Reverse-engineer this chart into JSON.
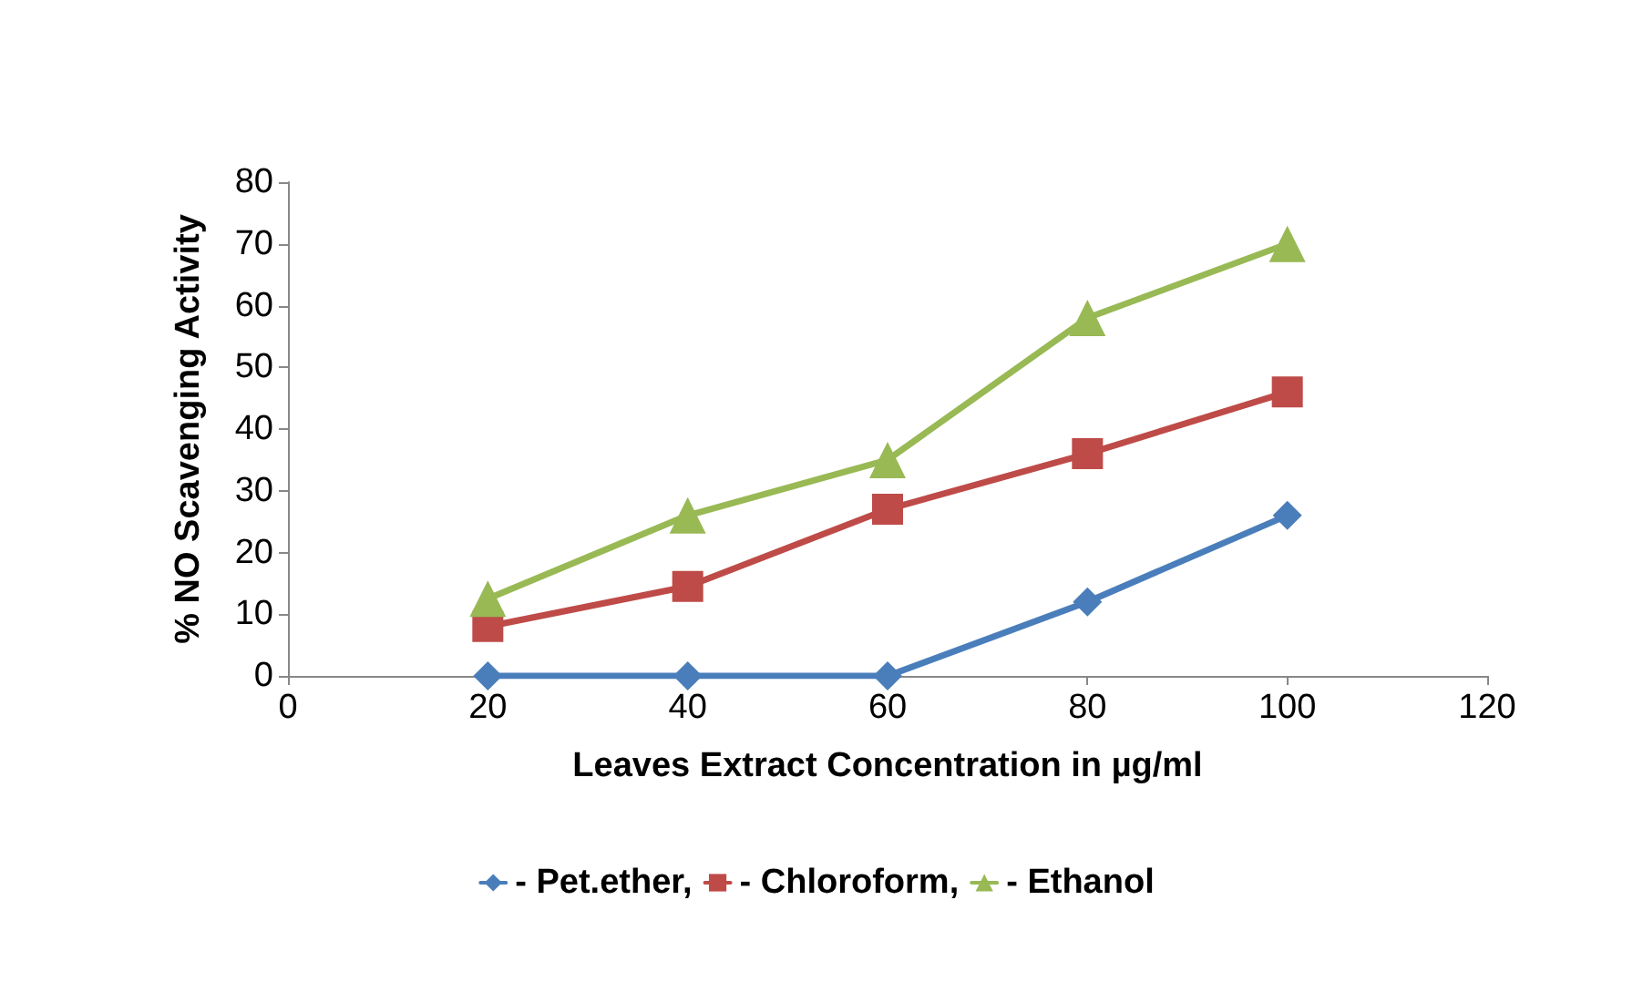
{
  "chart_data": {
    "type": "line",
    "xlabel": "Leaves Extract Concentration in µg/ml",
    "ylabel": "% NO Scavenging Activity",
    "x": [
      20,
      40,
      60,
      80,
      100
    ],
    "series": [
      {
        "name": "- Pet.ether,",
        "color": "#4a7ebb",
        "marker": "diamond",
        "values": [
          0,
          0,
          0,
          12,
          26
        ]
      },
      {
        "name": "- Chloroform,",
        "color": "#be4b48",
        "marker": "square",
        "values": [
          8,
          14.5,
          27,
          36,
          46
        ]
      },
      {
        "name": "- Ethanol",
        "color": "#98b954",
        "marker": "triangle",
        "values": [
          12.5,
          26,
          35,
          58,
          70
        ]
      }
    ],
    "xlim": [
      0,
      120
    ],
    "xticks": [
      0,
      20,
      40,
      60,
      80,
      100,
      120
    ],
    "ylim": [
      0,
      80
    ],
    "yticks": [
      0,
      10,
      20,
      30,
      40,
      50,
      60,
      70,
      80
    ],
    "grid": false,
    "legend": "bottom",
    "line_style": "solid"
  }
}
